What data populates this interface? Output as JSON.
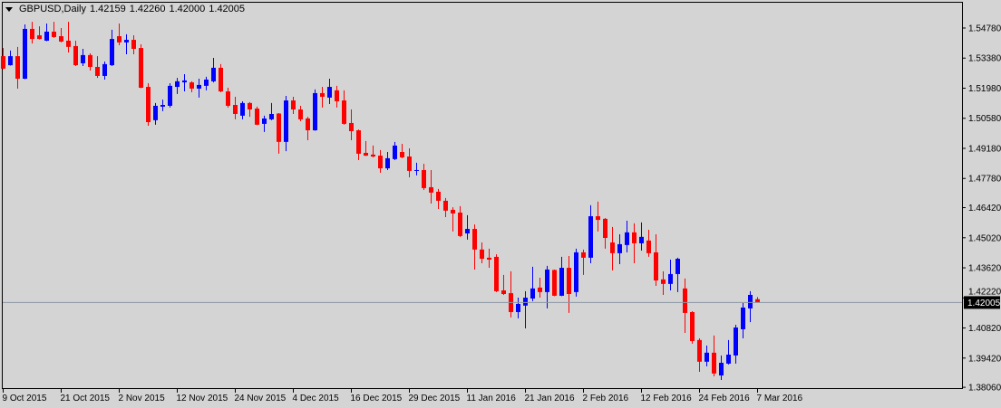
{
  "header": {
    "symbol_timeframe": "GBPUSD,Daily",
    "open": "1.42159",
    "high": "1.42260",
    "low": "1.42000",
    "close": "1.42005"
  },
  "colors": {
    "background": "#d4d4d4",
    "bull": "#0000ff",
    "bear": "#ff0000",
    "frame": "#000000",
    "price_line": "#8a96a3",
    "price_label_bg": "#000000",
    "price_label_text": "#ffffff"
  },
  "chart_data": {
    "type": "candlestick",
    "symbol": "GBPUSD",
    "timeframe": "Daily",
    "ylim": [
      1.3798,
      1.56
    ],
    "grid": false,
    "current_price": "1.42005",
    "y_ticks": [
      "1.54780",
      "1.53380",
      "1.51980",
      "1.50580",
      "1.49180",
      "1.47780",
      "1.46420",
      "1.45020",
      "1.43620",
      "1.42220",
      "1.40820",
      "1.39420",
      "1.38060"
    ],
    "x_ticks": [
      {
        "index": 0,
        "label": "9 Oct 2015"
      },
      {
        "index": 8,
        "label": "21 Oct 2015"
      },
      {
        "index": 16,
        "label": "2 Nov 2015"
      },
      {
        "index": 24,
        "label": "12 Nov 2015"
      },
      {
        "index": 32,
        "label": "24 Nov 2015"
      },
      {
        "index": 40,
        "label": "4 Dec 2015"
      },
      {
        "index": 48,
        "label": "16 Dec 2015"
      },
      {
        "index": 56,
        "label": "29 Dec 2015"
      },
      {
        "index": 64,
        "label": "11 Jan 2016"
      },
      {
        "index": 72,
        "label": "21 Jan 2016"
      },
      {
        "index": 80,
        "label": "2 Feb 2016"
      },
      {
        "index": 88,
        "label": "12 Feb 2016"
      },
      {
        "index": 96,
        "label": "24 Feb 2016"
      },
      {
        "index": 104,
        "label": "7 Mar 2016"
      }
    ],
    "ohlc_fields": [
      "open",
      "high",
      "low",
      "close"
    ],
    "candles": [
      [
        1.5347,
        1.5385,
        1.5287,
        1.5289
      ],
      [
        1.5305,
        1.5373,
        1.5303,
        1.5347
      ],
      [
        1.5347,
        1.539,
        1.5196,
        1.5242
      ],
      [
        1.5242,
        1.5495,
        1.524,
        1.5474
      ],
      [
        1.5474,
        1.5507,
        1.5406,
        1.5427
      ],
      [
        1.5444,
        1.5486,
        1.5425,
        1.5427
      ],
      [
        1.5419,
        1.5499,
        1.5417,
        1.5461
      ],
      [
        1.5461,
        1.5507,
        1.5432,
        1.5436
      ],
      [
        1.544,
        1.5478,
        1.5411,
        1.5415
      ],
      [
        1.5419,
        1.5507,
        1.5364,
        1.539
      ],
      [
        1.5394,
        1.5419,
        1.5301,
        1.5305
      ],
      [
        1.5314,
        1.5381,
        1.5301,
        1.5352
      ],
      [
        1.5352,
        1.536,
        1.528,
        1.5297
      ],
      [
        1.5297,
        1.5347,
        1.5246,
        1.5255
      ],
      [
        1.5255,
        1.5322,
        1.5238,
        1.531
      ],
      [
        1.5305,
        1.547,
        1.5301,
        1.5427
      ],
      [
        1.544,
        1.5499,
        1.5398,
        1.5411
      ],
      [
        1.5411,
        1.5449,
        1.5356,
        1.5423
      ],
      [
        1.5423,
        1.5444,
        1.5356,
        1.5381
      ],
      [
        1.5385,
        1.5402,
        1.5198,
        1.52
      ],
      [
        1.5204,
        1.5221,
        1.5023,
        1.504
      ],
      [
        1.5049,
        1.5129,
        1.5028,
        1.5116
      ],
      [
        1.5112,
        1.5145,
        1.5091,
        1.512
      ],
      [
        1.5116,
        1.5221,
        1.5108,
        1.5209
      ],
      [
        1.5204,
        1.5246,
        1.5171,
        1.523
      ],
      [
        1.5225,
        1.5263,
        1.5183,
        1.5234
      ],
      [
        1.5225,
        1.523,
        1.5179,
        1.5196
      ],
      [
        1.5196,
        1.5242,
        1.5154,
        1.5213
      ],
      [
        1.5209,
        1.5251,
        1.5188,
        1.5238
      ],
      [
        1.523,
        1.5339,
        1.5225,
        1.5293
      ],
      [
        1.5293,
        1.531,
        1.5179,
        1.5183
      ],
      [
        1.5183,
        1.52,
        1.5108,
        1.5116
      ],
      [
        1.512,
        1.5158,
        1.5053,
        1.5078
      ],
      [
        1.507,
        1.5137,
        1.5053,
        1.5129
      ],
      [
        1.5129,
        1.5133,
        1.5065,
        1.5099
      ],
      [
        1.5103,
        1.5112,
        1.5026,
        1.5028
      ],
      [
        1.5032,
        1.507,
        1.4994,
        1.5057
      ],
      [
        1.5053,
        1.5129,
        1.5049,
        1.5078
      ],
      [
        1.508,
        1.5082,
        1.4893,
        1.4948
      ],
      [
        1.4948,
        1.5162,
        1.4905,
        1.5141
      ],
      [
        1.5141,
        1.5158,
        1.5078,
        1.5099
      ],
      [
        1.5099,
        1.5116,
        1.5044,
        1.5053
      ],
      [
        1.5057,
        1.5065,
        1.4956,
        1.5002
      ],
      [
        1.5002,
        1.5192,
        1.5,
        1.5175
      ],
      [
        1.5175,
        1.5204,
        1.5108,
        1.5158
      ],
      [
        1.5154,
        1.5242,
        1.5124,
        1.5204
      ],
      [
        1.5188,
        1.5209,
        1.5108,
        1.5137
      ],
      [
        1.5141,
        1.5188,
        1.5028,
        1.5032
      ],
      [
        1.5036,
        1.5099,
        1.4956,
        1.4998
      ],
      [
        1.5002,
        1.5006,
        1.4863,
        1.4893
      ],
      [
        1.4897,
        1.4952,
        1.4882,
        1.4884
      ],
      [
        1.4889,
        1.4931,
        1.4876,
        1.488
      ],
      [
        1.4884,
        1.491,
        1.4804,
        1.4825
      ],
      [
        1.4825,
        1.4901,
        1.4817,
        1.4872
      ],
      [
        1.4868,
        1.4948,
        1.4863,
        1.4931
      ],
      [
        1.4901,
        1.4939,
        1.4872,
        1.4876
      ],
      [
        1.488,
        1.4918,
        1.4783,
        1.4813
      ],
      [
        1.4813,
        1.4851,
        1.4792,
        1.4817
      ],
      [
        1.4817,
        1.4846,
        1.4724,
        1.4733
      ],
      [
        1.4737,
        1.4817,
        1.4661,
        1.4712
      ],
      [
        1.4716,
        1.4729,
        1.4636,
        1.4674
      ],
      [
        1.4674,
        1.4687,
        1.4598,
        1.4628
      ],
      [
        1.4632,
        1.4644,
        1.4531,
        1.4615
      ],
      [
        1.4619,
        1.4649,
        1.4505,
        1.451
      ],
      [
        1.4522,
        1.4607,
        1.4493,
        1.4543
      ],
      [
        1.4543,
        1.4564,
        1.4354,
        1.4447
      ],
      [
        1.4447,
        1.448,
        1.4383,
        1.4404
      ],
      [
        1.4409,
        1.4451,
        1.4362,
        1.44
      ],
      [
        1.4413,
        1.4425,
        1.4249,
        1.4253
      ],
      [
        1.4257,
        1.4329,
        1.4236,
        1.424
      ],
      [
        1.4244,
        1.4346,
        1.4131,
        1.4156
      ],
      [
        1.4156,
        1.4223,
        1.4127,
        1.4194
      ],
      [
        1.4186,
        1.4253,
        1.408,
        1.4223
      ],
      [
        1.4219,
        1.4367,
        1.4207,
        1.4266
      ],
      [
        1.427,
        1.4316,
        1.4223,
        1.4249
      ],
      [
        1.4249,
        1.4371,
        1.4173,
        1.4354
      ],
      [
        1.4352,
        1.4354,
        1.423,
        1.4232
      ],
      [
        1.4232,
        1.4413,
        1.423,
        1.4362
      ],
      [
        1.4362,
        1.4417,
        1.4152,
        1.424
      ],
      [
        1.4249,
        1.4451,
        1.4228,
        1.4434
      ],
      [
        1.4434,
        1.4447,
        1.4329,
        1.4409
      ],
      [
        1.4409,
        1.4653,
        1.4383,
        1.4602
      ],
      [
        1.4602,
        1.467,
        1.4531,
        1.4585
      ],
      [
        1.459,
        1.4594,
        1.4451,
        1.4501
      ],
      [
        1.448,
        1.4552,
        1.435,
        1.443
      ],
      [
        1.443,
        1.4518,
        1.4379,
        1.4472
      ],
      [
        1.4468,
        1.4581,
        1.4434,
        1.4527
      ],
      [
        1.4527,
        1.4569,
        1.4383,
        1.4476
      ],
      [
        1.4476,
        1.4573,
        1.4442,
        1.4506
      ],
      [
        1.4489,
        1.4539,
        1.4413,
        1.443
      ],
      [
        1.4434,
        1.4518,
        1.4278,
        1.4303
      ],
      [
        1.4308,
        1.4346,
        1.4236,
        1.4287
      ],
      [
        1.4287,
        1.44,
        1.4257,
        1.4333
      ],
      [
        1.4333,
        1.4409,
        1.4249,
        1.4404
      ],
      [
        1.4266,
        1.4312,
        1.4059,
        1.4152
      ],
      [
        1.4156,
        1.416,
        1.4009,
        1.4021
      ],
      [
        1.4026,
        1.4034,
        1.3878,
        1.3925
      ],
      [
        1.3925,
        1.4,
        1.3903,
        1.3967
      ],
      [
        1.3967,
        1.4047,
        1.3857,
        1.387
      ],
      [
        1.3861,
        1.3954,
        1.384,
        1.392
      ],
      [
        1.3916,
        1.4026,
        1.3912,
        1.3958
      ],
      [
        1.3954,
        1.4097,
        1.3916,
        1.4084
      ],
      [
        1.4076,
        1.4198,
        1.4034,
        1.4177
      ],
      [
        1.4173,
        1.4253,
        1.4109,
        1.4236
      ],
      [
        1.42159,
        1.4226,
        1.42,
        1.42005
      ]
    ]
  }
}
